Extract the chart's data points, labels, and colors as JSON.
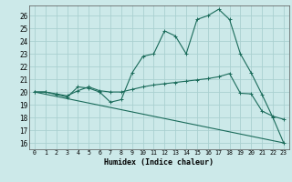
{
  "xlabel": "Humidex (Indice chaleur)",
  "xlim": [
    -0.5,
    23.5
  ],
  "ylim": [
    15.5,
    26.8
  ],
  "yticks": [
    16,
    17,
    18,
    19,
    20,
    21,
    22,
    23,
    24,
    25,
    26
  ],
  "xticks": [
    0,
    1,
    2,
    3,
    4,
    5,
    6,
    7,
    8,
    9,
    10,
    11,
    12,
    13,
    14,
    15,
    16,
    17,
    18,
    19,
    20,
    21,
    22,
    23
  ],
  "bg_color": "#cce9e9",
  "grid_color": "#aad0d0",
  "line_color": "#1a6b5a",
  "line1_x": [
    0,
    1,
    2,
    3,
    4,
    5,
    6,
    7,
    8,
    9,
    10,
    11,
    12,
    13,
    14,
    15,
    16,
    17,
    18,
    19,
    20,
    21,
    22,
    23
  ],
  "line1_y": [
    20.0,
    20.0,
    19.8,
    19.6,
    20.4,
    20.3,
    20.0,
    19.2,
    19.4,
    21.5,
    22.8,
    23.0,
    24.8,
    24.4,
    23.0,
    25.7,
    26.0,
    26.5,
    25.7,
    23.0,
    21.5,
    19.8,
    18.0,
    16.0
  ],
  "line2_x": [
    0,
    1,
    2,
    3,
    4,
    5,
    6,
    7,
    8,
    9,
    10,
    11,
    12,
    13,
    14,
    15,
    16,
    17,
    18,
    19,
    20,
    21,
    22,
    23
  ],
  "line2_y": [
    20.0,
    20.0,
    19.85,
    19.7,
    20.1,
    20.4,
    20.1,
    20.0,
    20.0,
    20.2,
    20.4,
    20.55,
    20.65,
    20.75,
    20.85,
    20.95,
    21.05,
    21.2,
    21.45,
    19.9,
    19.85,
    18.5,
    18.1,
    17.85
  ],
  "line3_x": [
    0,
    23
  ],
  "line3_y": [
    20.0,
    16.0
  ]
}
